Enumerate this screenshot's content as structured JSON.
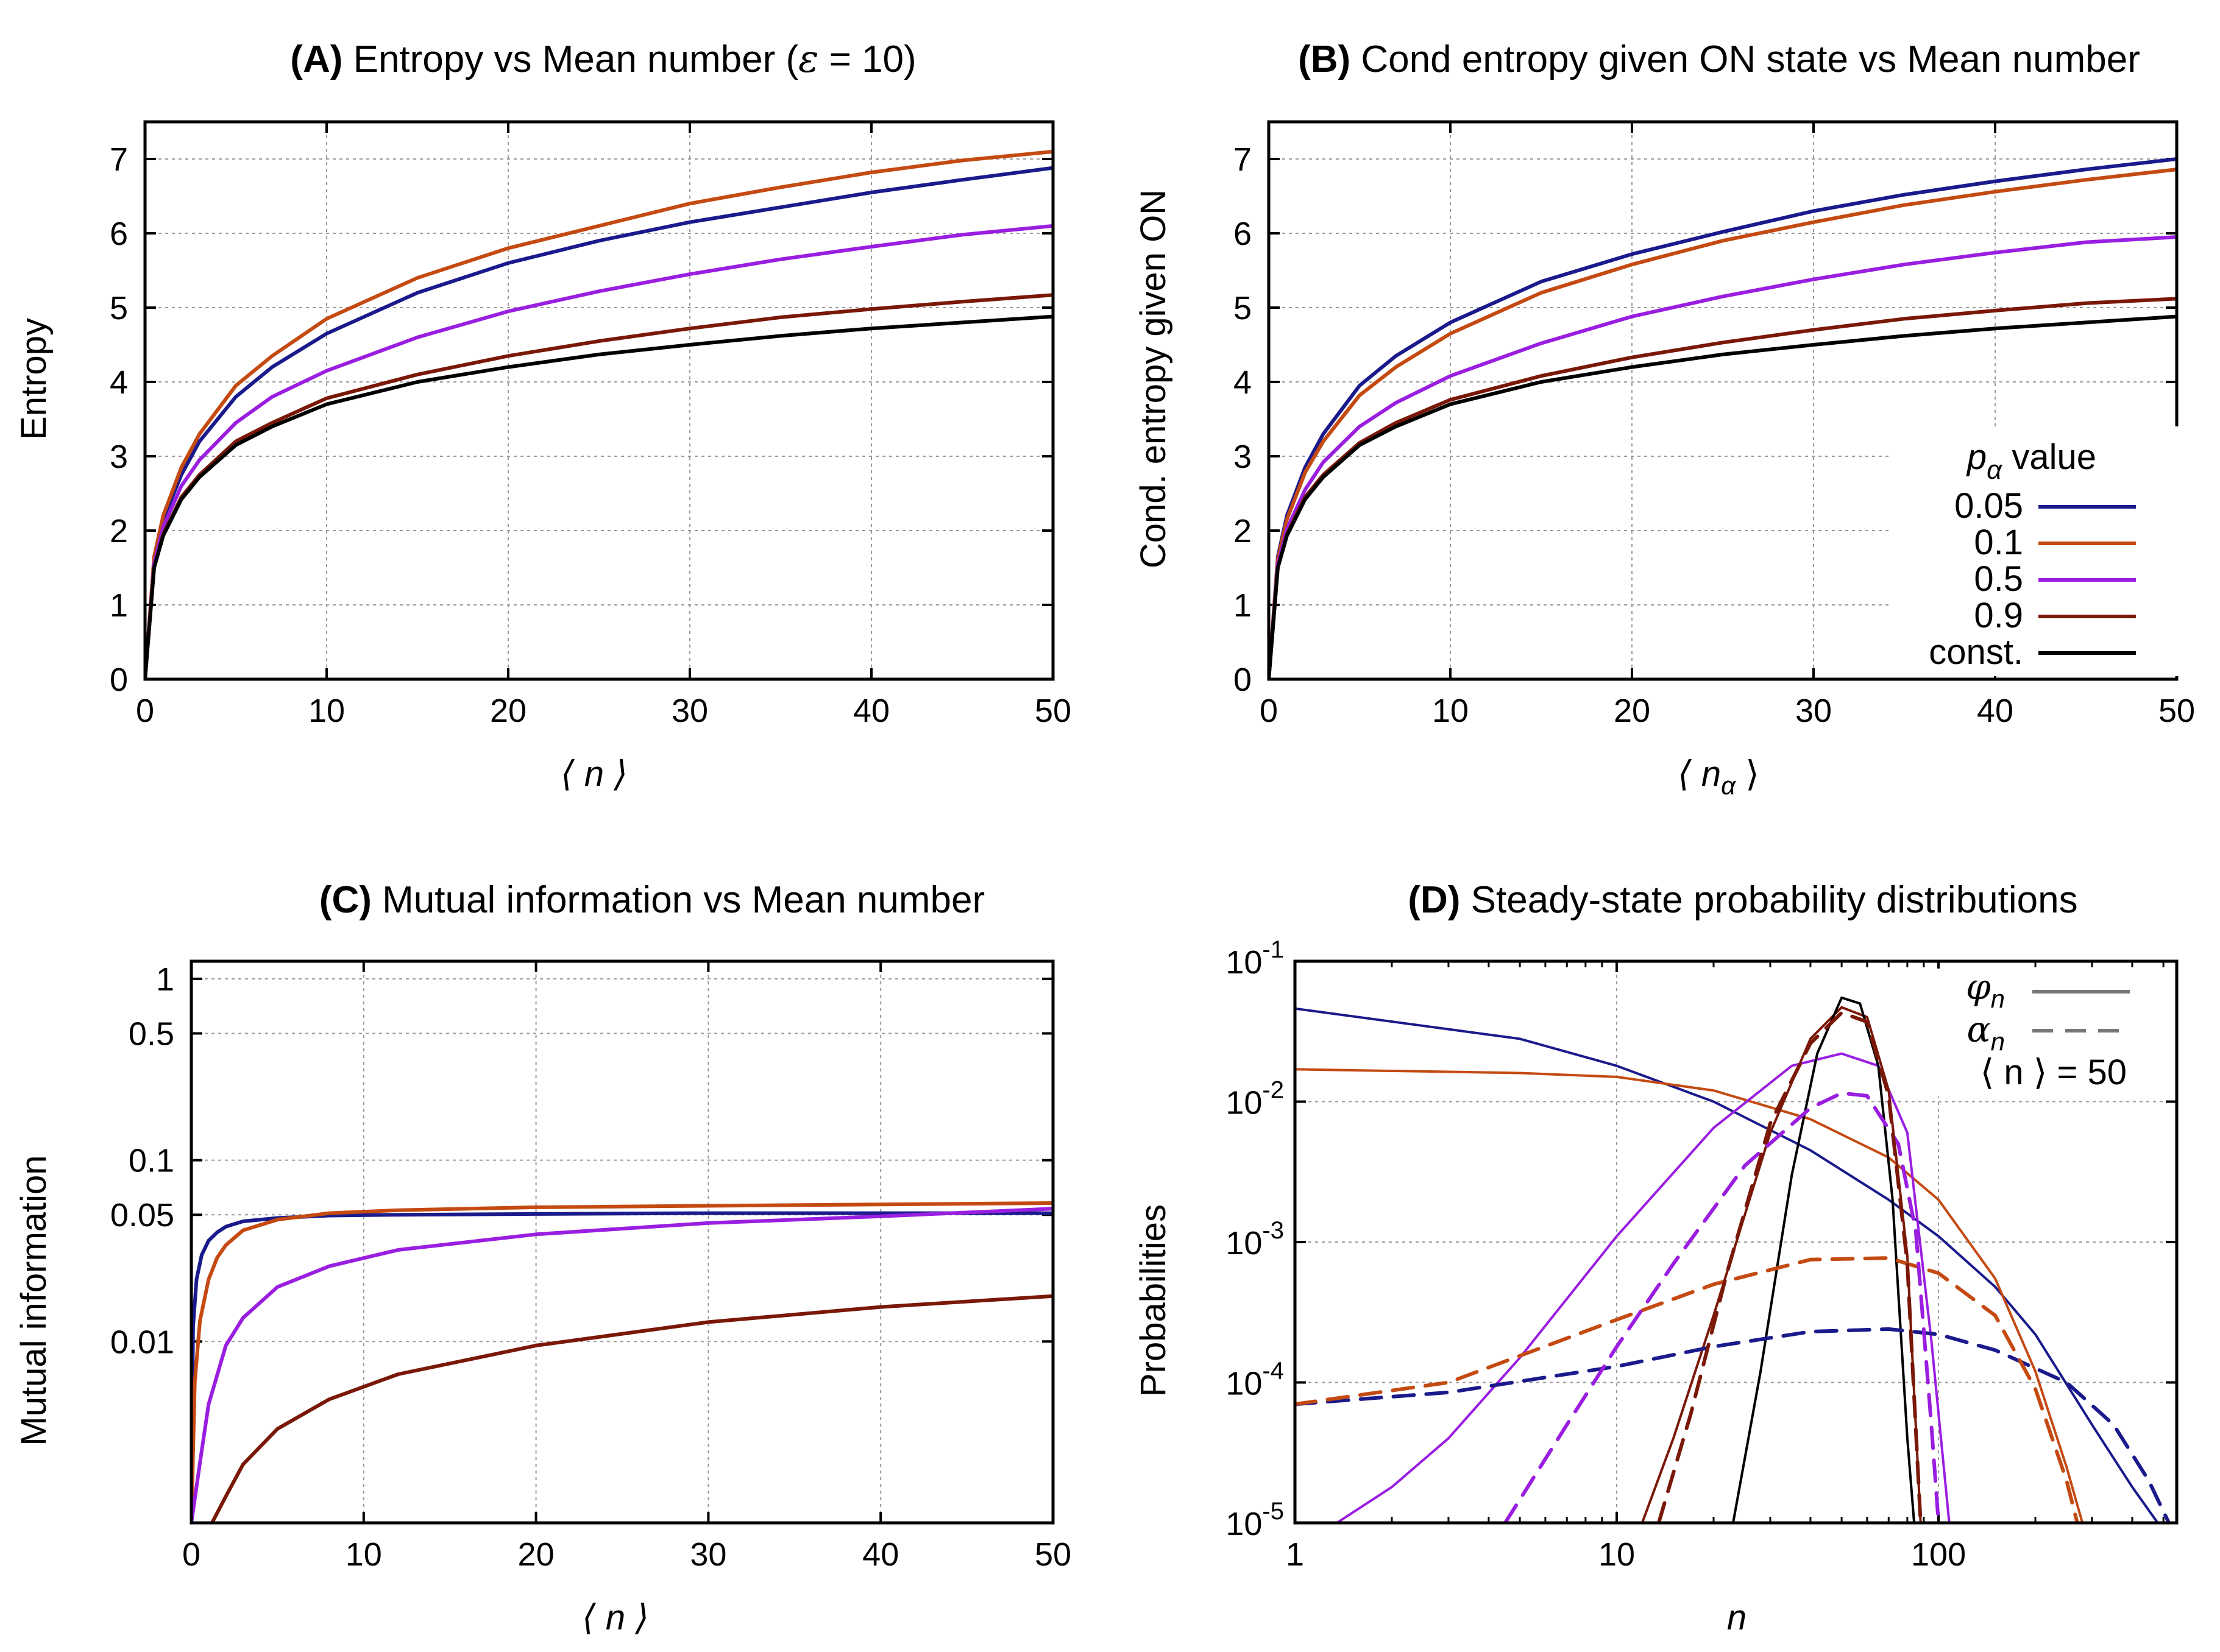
{
  "figure": {
    "legend": {
      "title_symbol": "p",
      "title_sub": "α",
      "title_suffix": " value",
      "entries": [
        {
          "label": "0.05",
          "color": "#1a1a8c"
        },
        {
          "label": "0.1",
          "color": "#c44a12"
        },
        {
          "label": "0.5",
          "color": "#9a1ee0"
        },
        {
          "label": "0.9",
          "color": "#7a1808"
        },
        {
          "label": "const.",
          "color": "#000000"
        }
      ]
    },
    "legend_d": {
      "phi_symbol": "φ",
      "phi_sub": "n",
      "alpha_symbol": "α",
      "alpha_sub": "n",
      "mean_label": "⟨ n ⟩ = 50",
      "line_color": "#777777"
    }
  },
  "chart_data": [
    {
      "id": "A",
      "type": "line",
      "title_bold": "(A)",
      "title": " Entropy vs Mean number (",
      "title_eps": "ε",
      "title_end": " = 10)",
      "xlabel": "⟨ n ⟩",
      "ylabel": "Entropy",
      "xlim": [
        0,
        50
      ],
      "ylim": [
        0,
        7.5
      ],
      "xticks": [
        0,
        10,
        20,
        30,
        40,
        50
      ],
      "yticks": [
        0,
        1,
        2,
        3,
        4,
        5,
        6,
        7
      ],
      "x": [
        0,
        0.5,
        1,
        2,
        3,
        5,
        7,
        10,
        15,
        20,
        25,
        30,
        35,
        40,
        45,
        50
      ],
      "series": [
        {
          "name": "0.05",
          "color": "#1a1a8c",
          "values": [
            0,
            1.6,
            2.15,
            2.75,
            3.2,
            3.8,
            4.2,
            4.65,
            5.2,
            5.6,
            5.9,
            6.15,
            6.35,
            6.55,
            6.72,
            6.88
          ]
        },
        {
          "name": "0.1",
          "color": "#c44a12",
          "values": [
            0,
            1.65,
            2.2,
            2.85,
            3.3,
            3.95,
            4.35,
            4.85,
            5.4,
            5.8,
            6.1,
            6.4,
            6.62,
            6.82,
            6.98,
            7.1
          ]
        },
        {
          "name": "0.5",
          "color": "#9a1ee0",
          "values": [
            0,
            1.55,
            2.05,
            2.6,
            2.95,
            3.45,
            3.8,
            4.15,
            4.6,
            4.95,
            5.22,
            5.45,
            5.65,
            5.82,
            5.98,
            6.1
          ]
        },
        {
          "name": "0.9",
          "color": "#7a1808",
          "values": [
            0,
            1.5,
            1.95,
            2.45,
            2.75,
            3.2,
            3.45,
            3.78,
            4.1,
            4.35,
            4.55,
            4.72,
            4.87,
            4.98,
            5.08,
            5.17
          ]
        },
        {
          "name": "const.",
          "color": "#000000",
          "values": [
            0,
            1.5,
            1.93,
            2.42,
            2.72,
            3.15,
            3.4,
            3.7,
            4.0,
            4.2,
            4.37,
            4.5,
            4.62,
            4.72,
            4.8,
            4.88
          ]
        }
      ]
    },
    {
      "id": "B",
      "type": "line",
      "title_bold": "(B)",
      "title": " Cond entropy given ON state vs Mean number",
      "xlabel": "⟨ n",
      "xlabel_sub": "α",
      "xlabel_end": " ⟩",
      "ylabel": "Cond. entropy given ON",
      "xlim": [
        0,
        50
      ],
      "ylim": [
        0,
        7.5
      ],
      "xticks": [
        0,
        10,
        20,
        30,
        40,
        50
      ],
      "yticks": [
        0,
        1,
        2,
        3,
        4,
        5,
        6,
        7
      ],
      "x": [
        0,
        0.5,
        1,
        2,
        3,
        5,
        7,
        10,
        15,
        20,
        25,
        30,
        35,
        40,
        45,
        50
      ],
      "series": [
        {
          "name": "0.05",
          "color": "#1a1a8c",
          "values": [
            0,
            1.65,
            2.2,
            2.85,
            3.3,
            3.95,
            4.35,
            4.8,
            5.35,
            5.72,
            6.02,
            6.3,
            6.52,
            6.7,
            6.86,
            7.0
          ]
        },
        {
          "name": "0.1",
          "color": "#c44a12",
          "values": [
            0,
            1.62,
            2.15,
            2.78,
            3.2,
            3.82,
            4.2,
            4.65,
            5.2,
            5.58,
            5.9,
            6.15,
            6.38,
            6.56,
            6.72,
            6.86
          ]
        },
        {
          "name": "0.5",
          "color": "#9a1ee0",
          "values": [
            0,
            1.55,
            2.02,
            2.55,
            2.92,
            3.4,
            3.72,
            4.08,
            4.52,
            4.88,
            5.15,
            5.38,
            5.58,
            5.74,
            5.88,
            5.95
          ]
        },
        {
          "name": "0.9",
          "color": "#7a1808",
          "values": [
            0,
            1.5,
            1.95,
            2.45,
            2.75,
            3.18,
            3.45,
            3.76,
            4.08,
            4.33,
            4.53,
            4.7,
            4.85,
            4.96,
            5.06,
            5.12
          ]
        },
        {
          "name": "const.",
          "color": "#000000",
          "values": [
            0,
            1.5,
            1.93,
            2.42,
            2.72,
            3.15,
            3.4,
            3.7,
            4.0,
            4.2,
            4.37,
            4.5,
            4.62,
            4.72,
            4.8,
            4.88
          ]
        }
      ]
    },
    {
      "id": "C",
      "type": "line",
      "yscale": "log",
      "title_bold": "(C)",
      "title": " Mutual information vs Mean number",
      "xlabel": "⟨ n ⟩",
      "ylabel": "Mutual information",
      "xlim": [
        0,
        50
      ],
      "ylim": [
        0.001,
        1.25
      ],
      "xticks": [
        0,
        10,
        20,
        30,
        40,
        50
      ],
      "yticks": [
        0.01,
        0.05,
        0.1,
        0.5,
        1
      ],
      "ytick_labels": [
        "0.01",
        "0.05",
        "0.1",
        "0.5",
        "1"
      ],
      "series": [
        {
          "name": "0.05",
          "color": "#1a1a8c",
          "x": [
            0,
            0.1,
            0.3,
            0.6,
            1,
            1.5,
            2,
            3,
            5,
            8,
            12,
            20,
            30,
            40,
            50
          ],
          "values": [
            0.001,
            0.012,
            0.022,
            0.03,
            0.036,
            0.04,
            0.043,
            0.046,
            0.048,
            0.0495,
            0.05,
            0.0505,
            0.051,
            0.051,
            0.051
          ]
        },
        {
          "name": "0.1",
          "color": "#c44a12",
          "x": [
            0,
            0.2,
            0.5,
            1,
            1.5,
            2,
            3,
            5,
            8,
            12,
            20,
            30,
            40,
            50
          ],
          "values": [
            0.001,
            0.006,
            0.013,
            0.022,
            0.029,
            0.034,
            0.041,
            0.047,
            0.051,
            0.053,
            0.055,
            0.056,
            0.057,
            0.058
          ]
        },
        {
          "name": "0.5",
          "color": "#9a1ee0",
          "x": [
            0,
            0.6,
            1,
            2,
            3,
            5,
            8,
            12,
            20,
            30,
            40,
            50
          ],
          "values": [
            0.001,
            0.0025,
            0.0045,
            0.0095,
            0.0135,
            0.02,
            0.026,
            0.032,
            0.039,
            0.045,
            0.049,
            0.054
          ]
        },
        {
          "name": "0.9",
          "color": "#7a1808",
          "x": [
            1.2,
            2,
            3,
            5,
            8,
            12,
            20,
            30,
            40,
            50
          ],
          "values": [
            0.001,
            0.0014,
            0.0021,
            0.0033,
            0.0048,
            0.0066,
            0.0095,
            0.0128,
            0.0155,
            0.0178
          ]
        }
      ]
    },
    {
      "id": "D",
      "type": "line",
      "xscale": "log",
      "yscale": "log",
      "title_bold": "(D)",
      "title": " Steady-state probability distributions",
      "xlabel": "n",
      "ylabel": "Probabilities",
      "xlim": [
        1,
        550
      ],
      "ylim": [
        1e-05,
        0.1
      ],
      "xticks": [
        1,
        10,
        100
      ],
      "xtick_labels": [
        "1",
        "10",
        "100"
      ],
      "yticks": [
        1e-05,
        0.0001,
        0.001,
        0.01,
        0.1
      ],
      "ytick_base": "10",
      "ytick_exps": [
        "-5",
        "-4",
        "-3",
        "-2",
        "-1"
      ],
      "series": [
        {
          "name": "phi 0.05",
          "color": "#1a1a8c",
          "dash": false,
          "x": [
            1,
            5,
            10,
            20,
            40,
            70,
            100,
            150,
            200,
            300,
            400,
            480
          ],
          "values": [
            0.046,
            0.028,
            0.018,
            0.01,
            0.0045,
            0.002,
            0.0011,
            0.00048,
            0.00022,
            5e-05,
            1.8e-05,
            1e-05
          ]
        },
        {
          "name": "phi 0.1",
          "color": "#c44a12",
          "dash": false,
          "x": [
            1,
            5,
            10,
            20,
            40,
            70,
            100,
            150,
            200,
            250,
            280
          ],
          "values": [
            0.017,
            0.016,
            0.015,
            0.012,
            0.0075,
            0.004,
            0.002,
            0.00055,
            0.00012,
            2.5e-05,
            1e-05
          ]
        },
        {
          "name": "phi 0.5",
          "color": "#9a1ee0",
          "dash": false,
          "x": [
            1.35,
            2,
            3,
            5,
            10,
            20,
            35,
            50,
            65,
            80,
            95,
            108
          ],
          "values": [
            1e-05,
            1.8e-05,
            4e-05,
            0.00015,
            0.0011,
            0.0065,
            0.018,
            0.022,
            0.018,
            0.006,
            0.0002,
            1e-05
          ]
        },
        {
          "name": "phi 0.9",
          "color": "#7a1808",
          "dash": false,
          "x": [
            12,
            15,
            20,
            30,
            40,
            50,
            60,
            70,
            80,
            88
          ],
          "values": [
            1e-05,
            4e-05,
            0.0003,
            0.006,
            0.028,
            0.047,
            0.04,
            0.012,
            0.0008,
            1e-05
          ]
        },
        {
          "name": "phi const.",
          "color": "#000000",
          "dash": false,
          "x": [
            23,
            28,
            35,
            42,
            50,
            57,
            65,
            72,
            80,
            84
          ],
          "values": [
            1e-05,
            0.00012,
            0.003,
            0.022,
            0.055,
            0.05,
            0.018,
            0.002,
            4e-05,
            1e-05
          ]
        },
        {
          "name": "alpha 0.05",
          "color": "#1a1a8c",
          "dash": true,
          "x": [
            1,
            3,
            10,
            20,
            40,
            70,
            100,
            150,
            250,
            350,
            450,
            520
          ],
          "values": [
            7e-05,
            8.5e-05,
            0.00013,
            0.00018,
            0.00023,
            0.00024,
            0.00022,
            0.00017,
            0.0001,
            5e-05,
            2e-05,
            1e-05
          ]
        },
        {
          "name": "alpha 0.1",
          "color": "#c44a12",
          "dash": true,
          "x": [
            1,
            3,
            10,
            20,
            40,
            70,
            100,
            150,
            200,
            250,
            270
          ],
          "values": [
            7e-05,
            0.0001,
            0.00028,
            0.0005,
            0.00075,
            0.00077,
            0.0006,
            0.0003,
            9e-05,
            2e-05,
            1e-05
          ]
        },
        {
          "name": "alpha 0.5",
          "color": "#9a1ee0",
          "dash": true,
          "x": [
            4.5,
            7,
            10,
            15,
            25,
            40,
            50,
            60,
            75,
            85,
            95,
            100
          ],
          "values": [
            1e-05,
            5e-05,
            0.00018,
            0.0007,
            0.0035,
            0.009,
            0.0115,
            0.011,
            0.005,
            0.0012,
            5e-05,
            1e-05
          ]
        },
        {
          "name": "alpha 0.9",
          "color": "#7a1808",
          "dash": true,
          "x": [
            13.5,
            17,
            22,
            30,
            40,
            50,
            60,
            70,
            80,
            88
          ],
          "values": [
            1e-05,
            6e-05,
            0.0006,
            0.007,
            0.026,
            0.043,
            0.037,
            0.011,
            0.0007,
            1e-05
          ]
        }
      ]
    }
  ]
}
